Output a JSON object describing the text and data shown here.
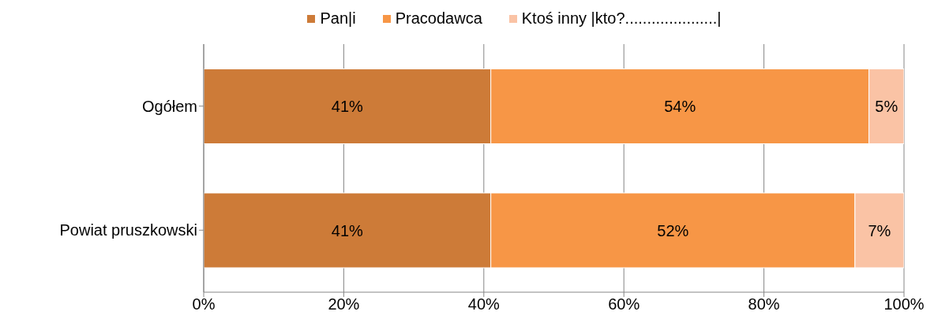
{
  "chart_data": {
    "type": "bar",
    "orientation": "horizontal",
    "stacked": true,
    "categories": [
      "Ogółem",
      "Powiat pruszkowski"
    ],
    "series": [
      {
        "name": "Pan|i",
        "color": "#cd7b38",
        "values": [
          41,
          41
        ],
        "value_labels": [
          "41%",
          "41%"
        ]
      },
      {
        "name": "Pracodawca",
        "color": "#f79646",
        "values": [
          54,
          52
        ],
        "value_labels": [
          "54%",
          "52%"
        ]
      },
      {
        "name": "Ktoś inny |kto?.....................|",
        "color": "#fac3a5",
        "values": [
          5,
          7
        ],
        "value_labels": [
          "5%",
          "7%"
        ]
      }
    ],
    "xlim": [
      0,
      100
    ],
    "xticks": [
      {
        "value": 0,
        "label": "0%"
      },
      {
        "value": 20,
        "label": "20%"
      },
      {
        "value": 40,
        "label": "40%"
      },
      {
        "value": 60,
        "label": "60%"
      },
      {
        "value": 80,
        "label": "80%"
      },
      {
        "value": 100,
        "label": "100%"
      }
    ],
    "grid": "x",
    "legend": "top"
  }
}
